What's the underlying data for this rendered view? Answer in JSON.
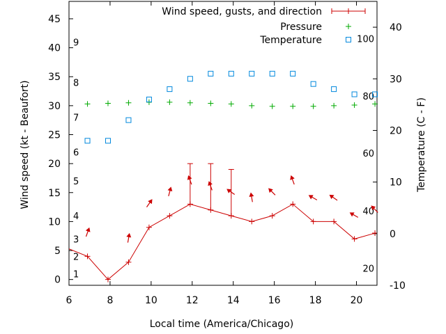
{
  "chart_data": {
    "type": "line",
    "xlabel": "Local time (America/Chicago)",
    "ylabel": "Wind speed (kt - Beaufort)",
    "y2label": "Temperature (C - F)",
    "xlim": [
      6,
      21
    ],
    "ylim": [
      -1,
      48
    ],
    "y2lim": [
      -10,
      45
    ],
    "grid": false,
    "legend_position": "top-right",
    "x_ticks": [
      "6",
      "8",
      "10",
      "12",
      "14",
      "16",
      "18",
      "20"
    ],
    "y_ticks": [
      "0",
      "5",
      "10",
      "15",
      "20",
      "25",
      "30",
      "35",
      "40",
      "45"
    ],
    "y2_ticks": [
      "-10",
      "0",
      "10",
      "20",
      "30",
      "40"
    ],
    "beaufort_labels": [
      {
        "label": "1",
        "value": 1
      },
      {
        "label": "2",
        "value": 4
      },
      {
        "label": "3",
        "value": 7
      },
      {
        "label": "4",
        "value": 11
      },
      {
        "label": "5",
        "value": 17
      },
      {
        "label": "6",
        "value": 22
      },
      {
        "label": "7",
        "value": 28
      },
      {
        "label": "8",
        "value": 34
      },
      {
        "label": "9",
        "value": 41
      }
    ],
    "fahrenheit_labels": [
      {
        "label": "20",
        "value": -6.7
      },
      {
        "label": "40",
        "value": 4.4
      },
      {
        "label": "60",
        "value": 15.6
      },
      {
        "label": "80",
        "value": 26.7
      },
      {
        "label": "100",
        "value": 37.8
      }
    ],
    "series": [
      {
        "name": "Wind speed, gusts, and direction",
        "color": "#cc0000",
        "x": [
          5.5,
          6.9,
          7.9,
          8.9,
          9.9,
          10.9,
          11.9,
          12.9,
          13.9,
          14.9,
          15.9,
          16.9,
          17.9,
          18.9,
          19.9,
          20.9
        ],
        "values": [
          6,
          4,
          0,
          3,
          9,
          11,
          13,
          12,
          11,
          10,
          11,
          13,
          10,
          10,
          7,
          8
        ],
        "gusts": [
          null,
          null,
          null,
          null,
          null,
          null,
          20,
          20,
          19,
          null,
          null,
          null,
          null,
          null,
          null,
          null
        ],
        "direction_deg": [
          null,
          20,
          null,
          10,
          35,
          15,
          340,
          340,
          305,
          350,
          315,
          340,
          300,
          305,
          300,
          315
        ]
      },
      {
        "name": "Pressure",
        "color": "#00aa00",
        "axis": "left",
        "x": [
          6.9,
          7.9,
          8.9,
          9.9,
          10.9,
          11.9,
          12.9,
          13.9,
          14.9,
          15.9,
          16.9,
          17.9,
          18.9,
          19.9,
          20.9
        ],
        "values": [
          30.3,
          30.4,
          30.5,
          30.6,
          30.6,
          30.5,
          30.4,
          30.3,
          30.0,
          29.9,
          29.9,
          29.9,
          30.0,
          30.1,
          30.3
        ]
      },
      {
        "name": "Temperature",
        "color": "#0088dd",
        "axis": "right",
        "x": [
          6.9,
          7.9,
          8.9,
          9.9,
          10.9,
          11.9,
          12.9,
          13.9,
          14.9,
          15.9,
          16.9,
          17.9,
          18.9,
          19.9,
          20.9
        ],
        "values": [
          18,
          18,
          22,
          26,
          28,
          30,
          31,
          31,
          31,
          31,
          31,
          29,
          28,
          27,
          27
        ]
      }
    ]
  }
}
